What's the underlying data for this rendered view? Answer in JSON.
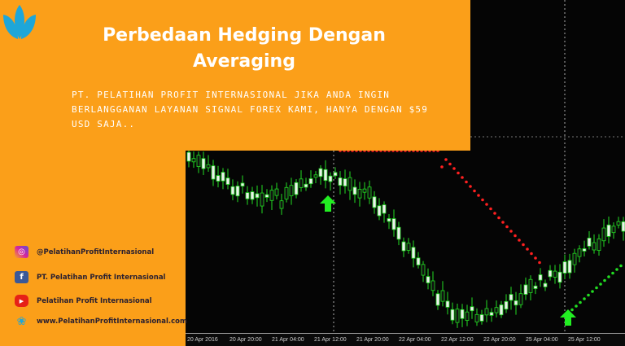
{
  "banner": {
    "title": "Perbedaan Hedging Dengan Averaging",
    "subtitle": "PT. Pelatihan Profit Internasional jika anda ingin berlangganan layanan signal forex kami, hanya dengan $59 USD saja..",
    "accent": "#fb9f19"
  },
  "social": [
    {
      "icon": "instagram-icon",
      "label": "@PelatihanProfitInternasional"
    },
    {
      "icon": "facebook-icon",
      "label": "PT. Pelatihan Profit Internasional"
    },
    {
      "icon": "youtube-icon",
      "label": "Pelatihan Profit Internasional"
    },
    {
      "icon": "lotus-icon",
      "label": "www.PelatihanProfitInternasional.com"
    }
  ],
  "chart": {
    "x_ticks": [
      "20 Apr 2016",
      "20 Apr 20:00",
      "21 Apr 04:00",
      "21 Apr 12:00",
      "21 Apr 20:00",
      "22 Apr 04:00",
      "22 Apr 12:00",
      "22 Apr 20:00",
      "25 Apr 04:00",
      "25 Apr 12:00"
    ],
    "bull_color": "#22dd22",
    "stop_color": "#ff2020"
  }
}
